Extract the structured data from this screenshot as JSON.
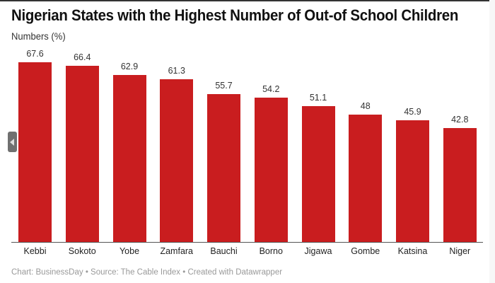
{
  "header": {
    "title": "Nigerian States with the Highest Number of Out-of School Children",
    "subtitle": "Numbers (%)"
  },
  "footer": {
    "text": "Chart: BusinessDay • Source: The Cable Index • Created with Datawrapper"
  },
  "colors": {
    "bar": "#c91d1f"
  },
  "chart_data": {
    "type": "bar",
    "title": "Nigerian States with the Highest Number of Out-of School Children",
    "subtitle": "Numbers (%)",
    "xlabel": "",
    "ylabel": "Numbers (%)",
    "categories": [
      "Kebbi",
      "Sokoto",
      "Yobe",
      "Zamfara",
      "Bauchi",
      "Borno",
      "Jigawa",
      "Gombe",
      "Katsina",
      "Niger"
    ],
    "values": [
      67.6,
      66.4,
      62.9,
      61.3,
      55.7,
      54.2,
      51.1,
      48,
      45.9,
      42.8
    ],
    "value_labels": [
      "67.6",
      "66.4",
      "62.9",
      "61.3",
      "55.7",
      "54.2",
      "51.1",
      "48",
      "45.9",
      "42.8"
    ],
    "ylim": [
      0,
      67.6
    ],
    "grid": false,
    "legend": null
  }
}
